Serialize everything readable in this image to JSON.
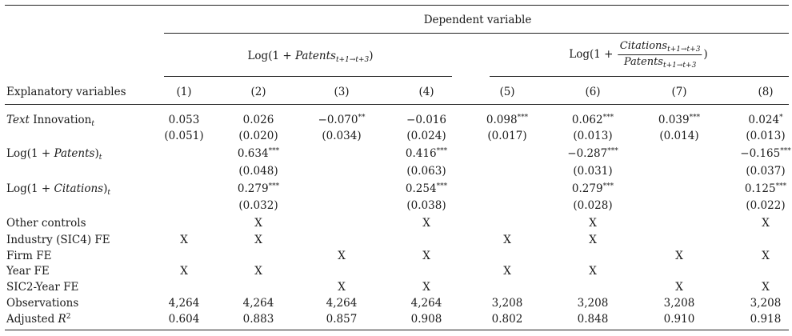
{
  "header": {
    "dependent_variable": "Dependent variable",
    "dv1_prefix": "Log(1 + ",
    "dv1_var": "Patents",
    "dv1_sub": "t+1→t+3",
    "dv1_suffix": ")",
    "dv2_prefix": "Log(1 + ",
    "dv2_num": "Citations",
    "dv2_num_sub": "t+1→t+3",
    "dv2_den": "Patents",
    "dv2_den_sub": "t+1→t+3",
    "dv2_suffix": ")",
    "explanatory": "Explanatory variables",
    "columns": [
      "(1)",
      "(2)",
      "(3)",
      "(4)",
      "(5)",
      "(6)",
      "(7)",
      "(8)"
    ]
  },
  "rows": {
    "text_innovation": {
      "label_italic": "Text",
      "label_rest": " Innovation",
      "label_sub": "t",
      "coef": [
        "0.053",
        "0.026",
        "−0.070",
        "−0.016",
        "0.098",
        "0.062",
        "0.039",
        "0.024"
      ],
      "stars": [
        "",
        "",
        "**",
        "",
        "***",
        "***",
        "***",
        "*"
      ],
      "se": [
        "(0.051)",
        "(0.020)",
        "(0.034)",
        "(0.024)",
        "(0.017)",
        "(0.013)",
        "(0.014)",
        "(0.013)"
      ]
    },
    "log_patents": {
      "label_prefix": "Log(1 + ",
      "label_var": "Patents",
      "label_suffix": ")",
      "label_sub": "t",
      "coef": [
        "",
        "0.634",
        "",
        "0.416",
        "",
        "−0.287",
        "",
        "−0.165"
      ],
      "stars": [
        "",
        "***",
        "",
        "***",
        "",
        "***",
        "",
        "***"
      ],
      "se": [
        "",
        "(0.048)",
        "",
        "(0.063)",
        "",
        "(0.031)",
        "",
        "(0.037)"
      ]
    },
    "log_citations": {
      "label_prefix": "Log(1 + ",
      "label_var": "Citations",
      "label_suffix": ")",
      "label_sub": "t",
      "coef": [
        "",
        "0.279",
        "",
        "0.254",
        "",
        "0.279",
        "",
        "0.125"
      ],
      "stars": [
        "",
        "***",
        "",
        "***",
        "",
        "***",
        "",
        "***"
      ],
      "se": [
        "",
        "(0.032)",
        "",
        "(0.038)",
        "",
        "(0.028)",
        "",
        "(0.022)"
      ]
    },
    "other_controls": {
      "label": "Other controls",
      "marks": [
        "",
        "X",
        "",
        "X",
        "",
        "X",
        "",
        "X"
      ]
    },
    "industry_fe": {
      "label": "Industry (SIC4) FE",
      "marks": [
        "X",
        "X",
        "",
        "",
        "X",
        "X",
        "",
        ""
      ]
    },
    "firm_fe": {
      "label": "Firm FE",
      "marks": [
        "",
        "",
        "X",
        "X",
        "",
        "",
        "X",
        "X"
      ]
    },
    "year_fe": {
      "label": "Year FE",
      "marks": [
        "X",
        "X",
        "",
        "",
        "X",
        "X",
        "",
        ""
      ]
    },
    "sic2_year_fe": {
      "label": "SIC2-Year FE",
      "marks": [
        "",
        "",
        "X",
        "X",
        "",
        "",
        "X",
        "X"
      ]
    },
    "observations": {
      "label": "Observations",
      "values": [
        "4,264",
        "4,264",
        "4,264",
        "4,264",
        "3,208",
        "3,208",
        "3,208",
        "3,208"
      ]
    },
    "adj_r2": {
      "label": "Adjusted ",
      "label_var": "R",
      "label_sup": "2",
      "values": [
        "0.604",
        "0.883",
        "0.857",
        "0.908",
        "0.802",
        "0.848",
        "0.910",
        "0.918"
      ]
    }
  }
}
